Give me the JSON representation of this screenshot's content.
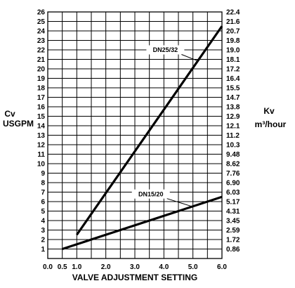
{
  "chart_data": {
    "type": "line",
    "xlabel": "VALVE ADJUSTMENT SETTING",
    "ylabel_left": [
      "Cv",
      "USGPM"
    ],
    "ylabel_right": [
      "Kv",
      "m³/hour"
    ],
    "xlim": [
      0,
      6
    ],
    "ylim": [
      0,
      26
    ],
    "x_ticks": [
      "0.0",
      "0.5",
      "1.0",
      "2.0",
      "3.0",
      "4.0",
      "5.0",
      "6.0"
    ],
    "x_tick_values": [
      0,
      0.5,
      1,
      2,
      3,
      4,
      5,
      6
    ],
    "y_ticks_left": [
      "1",
      "2",
      "3",
      "4",
      "5",
      "6",
      "7",
      "8",
      "9",
      "10",
      "11",
      "12",
      "13",
      "14",
      "15",
      "16",
      "17",
      "18",
      "19",
      "20",
      "21",
      "22",
      "23",
      "24",
      "25",
      "26"
    ],
    "y_ticks_right": [
      "0.86",
      "1.72",
      "2.59",
      "3.45",
      "4.31",
      "5.17",
      "6.03",
      "6.90",
      "7.76",
      "8.62",
      "9.48",
      "10.3",
      "11.2",
      "12.1",
      "12.9",
      "13.8",
      "14.7",
      "15.5",
      "16.4",
      "17.2",
      "18.1",
      "19.0",
      "19.8",
      "20.7",
      "21.6",
      "22.4"
    ],
    "grid": true,
    "series": [
      {
        "name": "DN25/32",
        "x": [
          1.0,
          6.0
        ],
        "y": [
          2.5,
          24.5
        ],
        "label_at": [
          4.05,
          22.0
        ]
      },
      {
        "name": "DN15/20",
        "x": [
          0.5,
          6.0
        ],
        "y": [
          1.0,
          6.5
        ],
        "label_at": [
          3.55,
          6.8
        ]
      }
    ]
  }
}
